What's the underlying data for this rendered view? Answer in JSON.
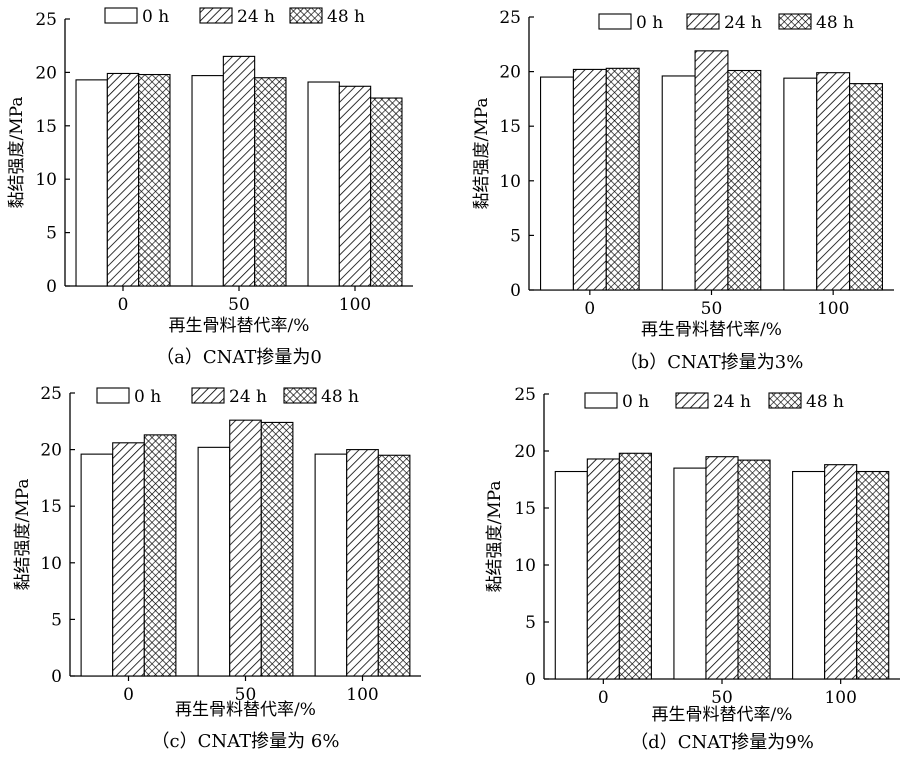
{
  "chart_data": [
    {
      "type": "bar",
      "categories": [
        "0",
        "50",
        "100"
      ],
      "series": [
        {
          "name": "0 h",
          "values": [
            19.3,
            19.7,
            19.1
          ]
        },
        {
          "name": "24 h",
          "values": [
            19.9,
            21.5,
            18.7
          ]
        },
        {
          "name": "48 h",
          "values": [
            19.8,
            19.5,
            17.6
          ]
        }
      ],
      "ylabel": "黏结强度/MPa",
      "xlabel": "再生骨料替代率/%",
      "caption": "（a）CNAT掺量为0",
      "ylim": [
        0,
        25
      ],
      "yticks": [
        "0",
        "5",
        "10",
        "15",
        "20",
        "25"
      ],
      "legend": "top"
    },
    {
      "type": "bar",
      "categories": [
        "0",
        "50",
        "100"
      ],
      "series": [
        {
          "name": "0 h",
          "values": [
            19.5,
            19.6,
            19.4
          ]
        },
        {
          "name": "24 h",
          "values": [
            20.2,
            21.9,
            19.9
          ]
        },
        {
          "name": "48 h",
          "values": [
            20.3,
            20.1,
            18.9
          ]
        }
      ],
      "ylabel": "黏结强度/MPa",
      "xlabel": "再生骨料替代率/%",
      "caption": "（b）CNAT掺量为3%",
      "ylim": [
        0,
        25
      ],
      "yticks": [
        "0",
        "5",
        "10",
        "15",
        "20",
        "25"
      ],
      "legend": "top"
    },
    {
      "type": "bar",
      "categories": [
        "0",
        "50",
        "100"
      ],
      "series": [
        {
          "name": "0 h",
          "values": [
            19.6,
            20.2,
            19.6
          ]
        },
        {
          "name": "24 h",
          "values": [
            20.6,
            22.6,
            20.0
          ]
        },
        {
          "name": "48 h",
          "values": [
            21.3,
            22.4,
            19.5
          ]
        }
      ],
      "ylabel": "黏结强度/MPa",
      "xlabel": "再生骨料替代率/%",
      "caption": "（c）CNAT掺量为 6%",
      "ylim": [
        0,
        25
      ],
      "yticks": [
        "0",
        "5",
        "10",
        "15",
        "20",
        "25"
      ],
      "legend": "top"
    },
    {
      "type": "bar",
      "categories": [
        "0",
        "50",
        "100"
      ],
      "series": [
        {
          "name": "0 h",
          "values": [
            18.2,
            18.5,
            18.2
          ]
        },
        {
          "name": "24 h",
          "values": [
            19.3,
            19.5,
            18.8
          ]
        },
        {
          "name": "48 h",
          "values": [
            19.8,
            19.2,
            18.2
          ]
        }
      ],
      "ylabel": "黏结强度/MPa",
      "xlabel": "再生骨料替代率/%",
      "caption": "（d）CNAT掺量为9%",
      "ylim": [
        0,
        25
      ],
      "yticks": [
        "0",
        "5",
        "10",
        "15",
        "20",
        "25"
      ],
      "legend": "top"
    }
  ]
}
